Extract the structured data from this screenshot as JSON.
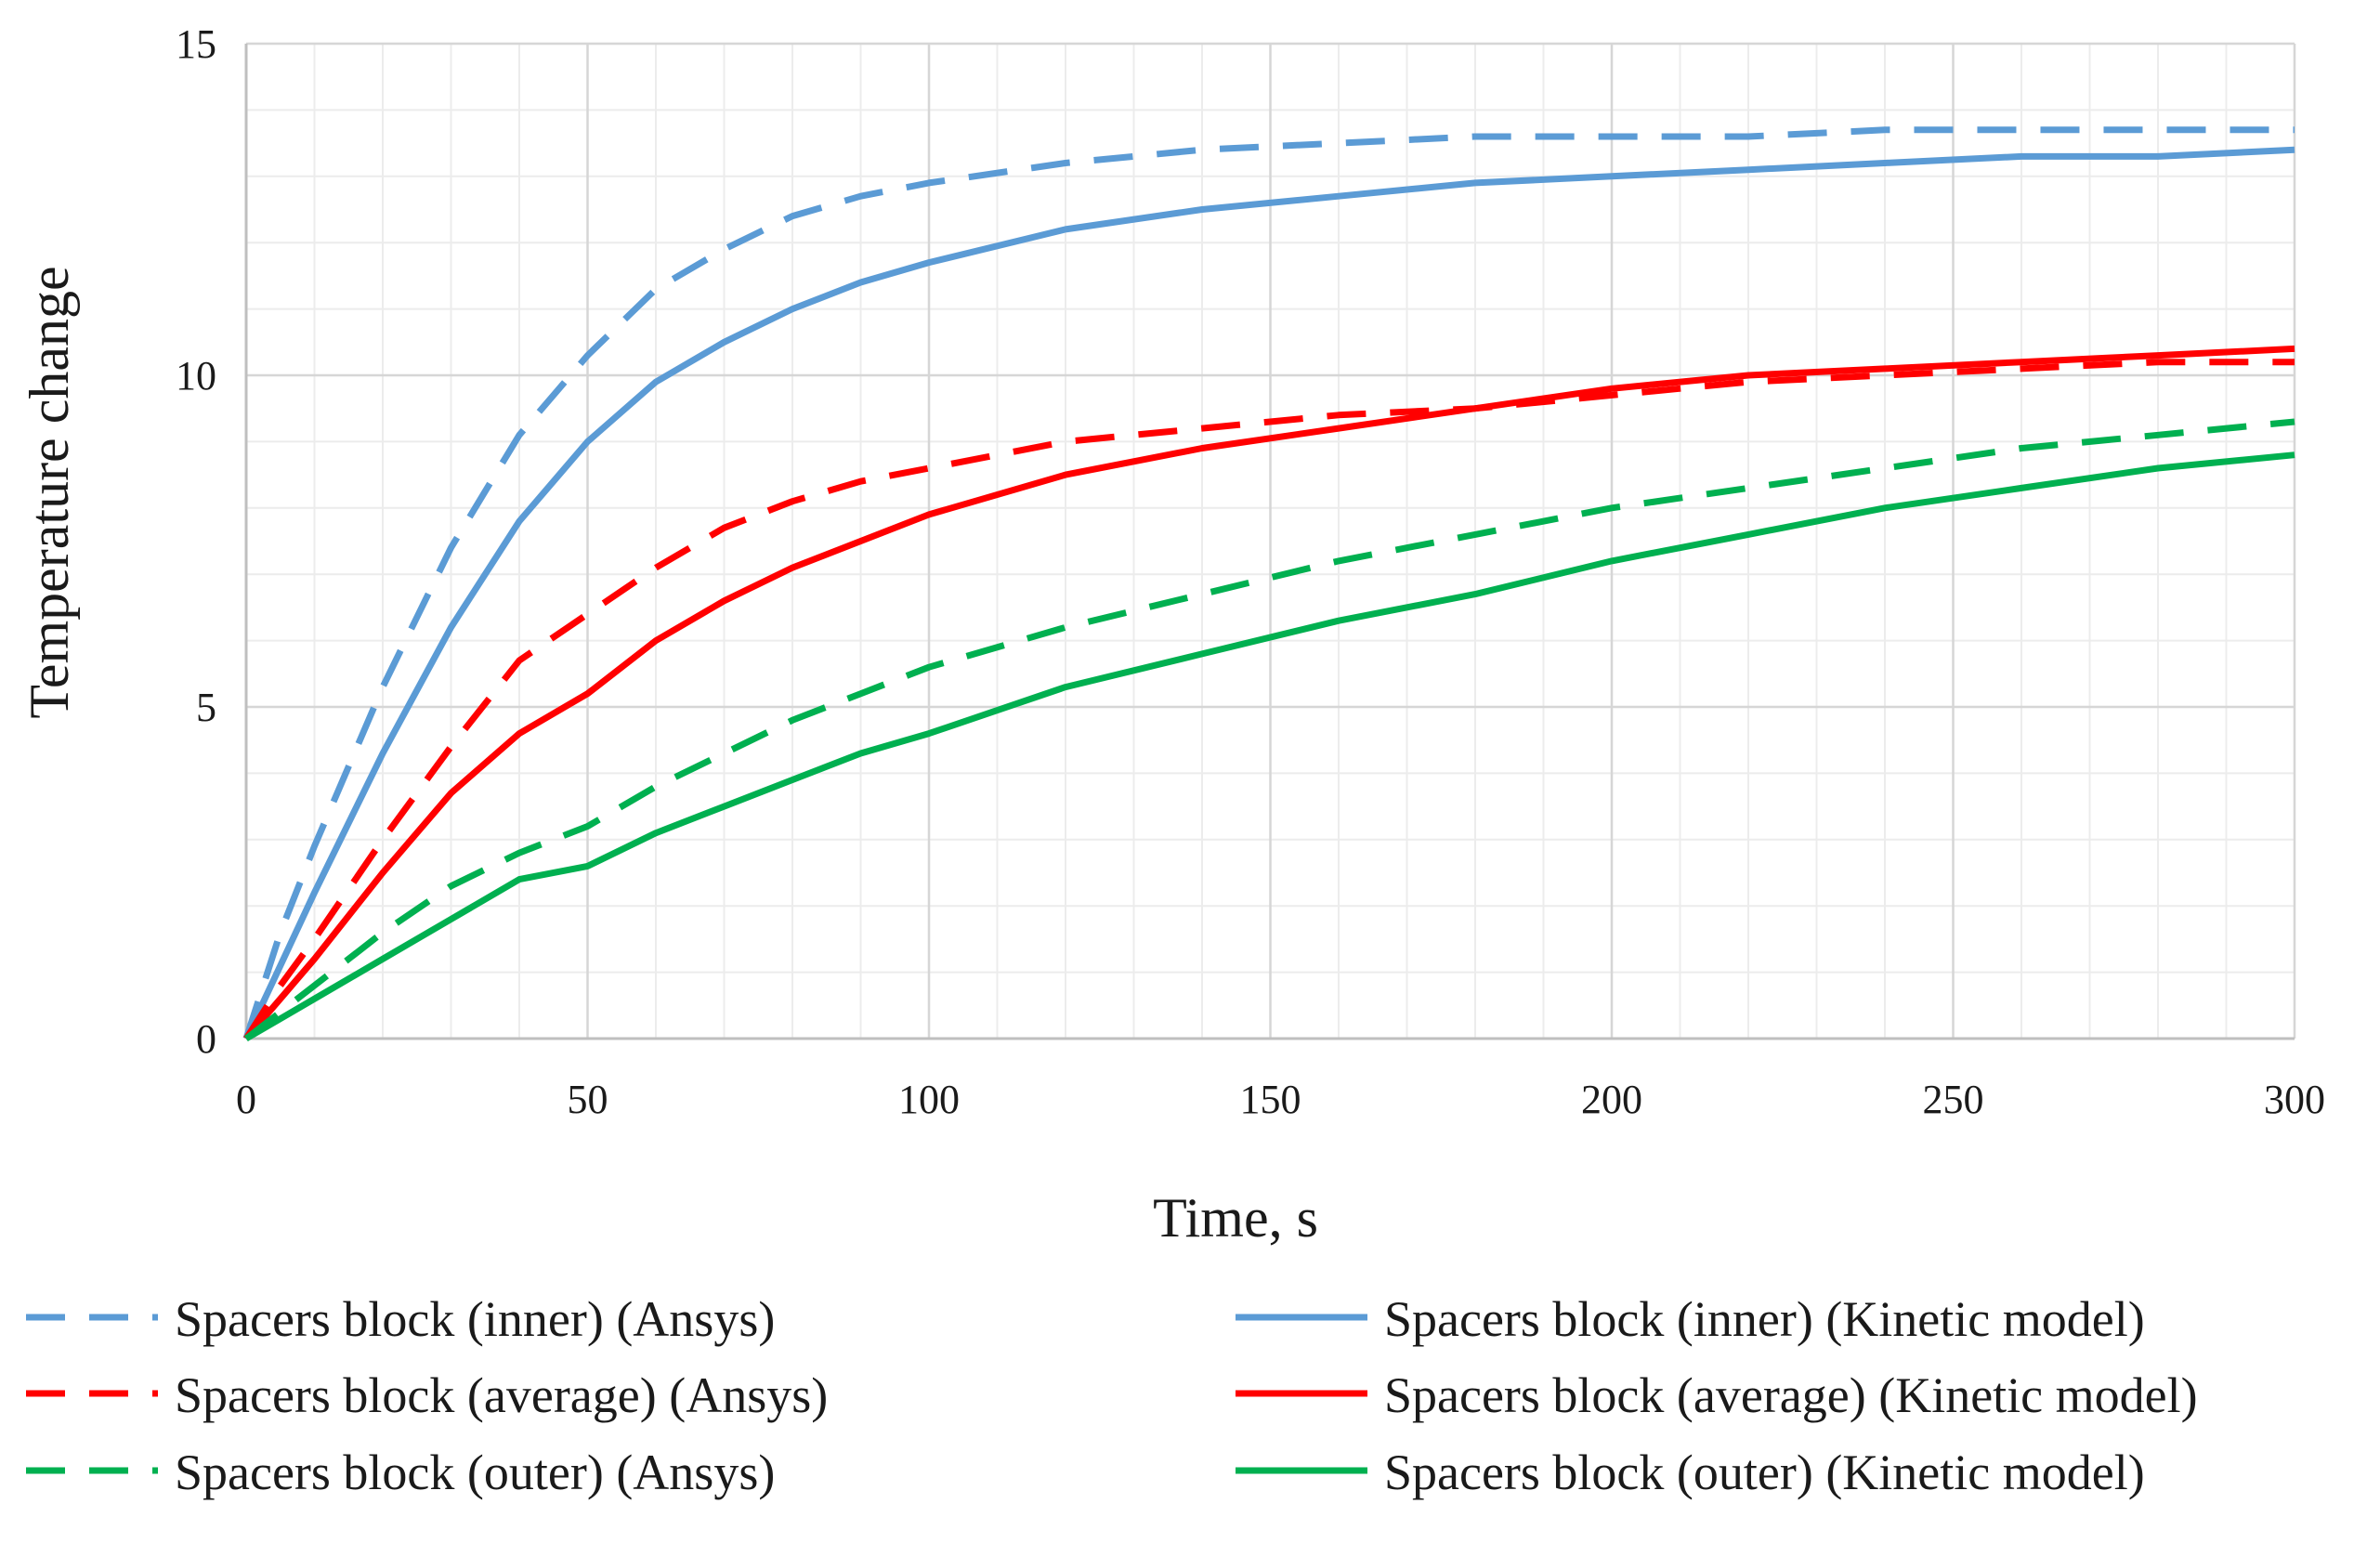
{
  "chart_data": {
    "type": "line",
    "title": "",
    "xlabel": "Time, s",
    "ylabel": "Temperature change",
    "xlim": [
      0,
      300
    ],
    "ylim": [
      0,
      15
    ],
    "grid": true,
    "legend_position": "bottom",
    "x_ticks": [
      "0",
      "50",
      "100",
      "150",
      "200",
      "250",
      "300"
    ],
    "y_ticks": [
      "0",
      "5",
      "10",
      "15"
    ],
    "x": [
      0,
      5,
      10,
      20,
      30,
      40,
      50,
      60,
      70,
      80,
      90,
      100,
      120,
      140,
      160,
      180,
      200,
      220,
      240,
      260,
      280,
      300
    ],
    "series": [
      {
        "name": "Spacers block (inner) (Ansys)",
        "color": "#5b9bd5",
        "dash": true,
        "values": [
          0,
          1.6,
          2.9,
          5.3,
          7.4,
          9.1,
          10.3,
          11.3,
          11.9,
          12.4,
          12.7,
          12.9,
          13.2,
          13.4,
          13.5,
          13.6,
          13.6,
          13.6,
          13.7,
          13.7,
          13.7,
          13.7
        ]
      },
      {
        "name": "Spacers block (inner) (Kinetic model)",
        "color": "#5b9bd5",
        "dash": false,
        "values": [
          0,
          1.1,
          2.2,
          4.3,
          6.2,
          7.8,
          9.0,
          9.9,
          10.5,
          11.0,
          11.4,
          11.7,
          12.2,
          12.5,
          12.7,
          12.9,
          13.0,
          13.1,
          13.2,
          13.3,
          13.3,
          13.4
        ]
      },
      {
        "name": "Spacers block (average) (Ansys)",
        "color": "#ff0000",
        "dash": true,
        "values": [
          0,
          0.8,
          1.5,
          3.0,
          4.4,
          5.7,
          6.4,
          7.1,
          7.7,
          8.1,
          8.4,
          8.6,
          9.0,
          9.2,
          9.4,
          9.5,
          9.7,
          9.9,
          10.0,
          10.1,
          10.2,
          10.2
        ]
      },
      {
        "name": "Spacers block (average) (Kinetic model)",
        "color": "#ff0000",
        "dash": false,
        "values": [
          0,
          0.6,
          1.2,
          2.5,
          3.7,
          4.6,
          5.2,
          6.0,
          6.6,
          7.1,
          7.5,
          7.9,
          8.5,
          8.9,
          9.2,
          9.5,
          9.8,
          10.0,
          10.1,
          10.2,
          10.3,
          10.4
        ]
      },
      {
        "name": "Spacers block (outer) (Ansys)",
        "color": "#00b050",
        "dash": true,
        "values": [
          0,
          0.4,
          0.8,
          1.6,
          2.3,
          2.8,
          3.2,
          3.8,
          4.3,
          4.8,
          5.2,
          5.6,
          6.2,
          6.7,
          7.2,
          7.6,
          8.0,
          8.3,
          8.6,
          8.9,
          9.1,
          9.3
        ]
      },
      {
        "name": "Spacers block (outer) (Kinetic model)",
        "color": "#00b050",
        "dash": false,
        "values": [
          0,
          0.3,
          0.6,
          1.2,
          1.8,
          2.4,
          2.6,
          3.1,
          3.5,
          3.9,
          4.3,
          4.6,
          5.3,
          5.8,
          6.3,
          6.7,
          7.2,
          7.6,
          8.0,
          8.3,
          8.6,
          8.8
        ]
      }
    ]
  }
}
